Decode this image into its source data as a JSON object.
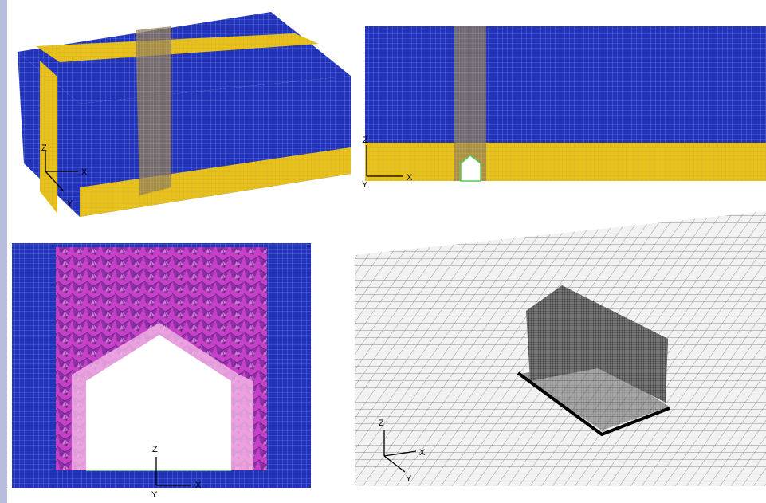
{
  "panels": [
    {
      "axes": {
        "z": "Z",
        "x": "X",
        "y": "Y"
      }
    },
    {
      "axes": {
        "z": "Z",
        "x": "X",
        "y": "Y"
      }
    },
    {
      "axes": {
        "z": "Z",
        "x": "X",
        "y": "Y"
      }
    },
    {
      "axes": {
        "z": "Z",
        "x": "X",
        "y": "Y"
      }
    }
  ]
}
